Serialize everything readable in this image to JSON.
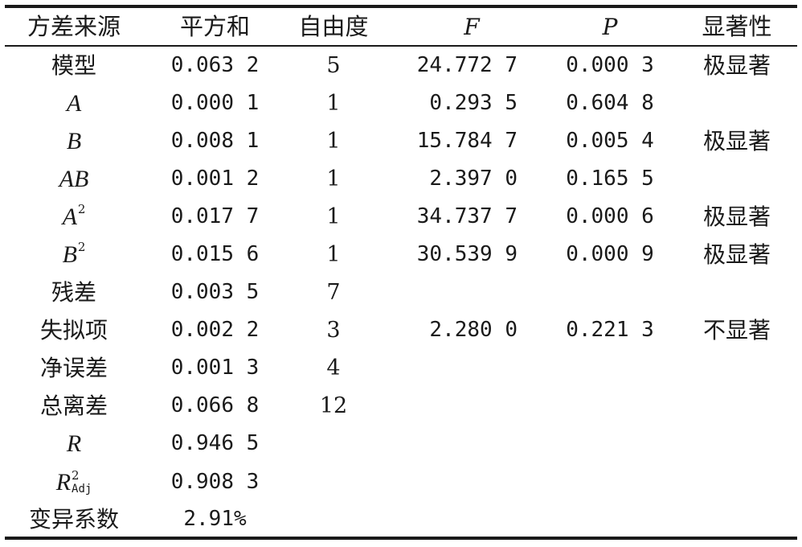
{
  "table": {
    "headers": [
      "方差来源",
      "平方和",
      "自由度",
      "F",
      "P",
      "显著性"
    ],
    "rows": [
      {
        "source": "模型",
        "ss": "0.063 2",
        "df": "5",
        "f": "24.772 7",
        "p": "0.000 3",
        "sig": "极显著"
      },
      {
        "source": "A",
        "ss": "0.000 1",
        "df": "1",
        "f": "0.293 5",
        "p": "0.604 8",
        "sig": ""
      },
      {
        "source": "B",
        "ss": "0.008 1",
        "df": "1",
        "f": "15.784 7",
        "p": "0.005 4",
        "sig": "极显著"
      },
      {
        "source": "AB",
        "ss": "0.001 2",
        "df": "1",
        "f": "2.397 0",
        "p": "0.165 5",
        "sig": ""
      },
      {
        "source": "A",
        "source_sup": "2",
        "ss": "0.017 7",
        "df": "1",
        "f": "34.737 7",
        "p": "0.000 6",
        "sig": "极显著"
      },
      {
        "source": "B",
        "source_sup": "2",
        "ss": "0.015 6",
        "df": "1",
        "f": "30.539 9",
        "p": "0.000 9",
        "sig": "极显著"
      },
      {
        "source": "残差",
        "ss": "0.003 5",
        "df": "7",
        "f": "",
        "p": "",
        "sig": ""
      },
      {
        "source": "失拟项",
        "ss": "0.002 2",
        "df": "3",
        "f": "2.280 0",
        "p": "0.221 3",
        "sig": "不显著"
      },
      {
        "source": "净误差",
        "ss": "0.001 3",
        "df": "4",
        "f": "",
        "p": "",
        "sig": ""
      },
      {
        "source": "总离差",
        "ss": "0.066 8",
        "df": "12",
        "f": "",
        "p": "",
        "sig": ""
      },
      {
        "source": "R",
        "ss": "0.946 5",
        "df": "",
        "f": "",
        "p": "",
        "sig": ""
      },
      {
        "source": "R",
        "source_sup": "2",
        "source_sub": "Adj",
        "ss": "0.908 3",
        "df": "",
        "f": "",
        "p": "",
        "sig": ""
      },
      {
        "source": "变异系数",
        "ss": "2.91%",
        "df": "",
        "f": "",
        "p": "",
        "sig": ""
      }
    ]
  }
}
